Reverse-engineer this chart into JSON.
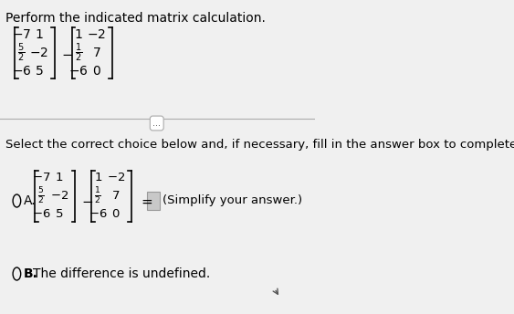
{
  "title": "Perform the indicated matrix calculation.",
  "select_text": "Select the correct choice below and, if necessary, fill in the answer box to complete your choice.",
  "bg_color": "#f0f0f0",
  "text_color": "#000000",
  "matrix1_rows": [
    [
      "-7",
      "1"
    ],
    [
      "\\frac{5}{2}",
      "-2"
    ],
    [
      "-6",
      "5"
    ]
  ],
  "matrix2_rows": [
    [
      "1",
      "-2"
    ],
    [
      "\\frac{1}{2}",
      "7"
    ],
    [
      "-6",
      "0"
    ]
  ],
  "choice_A": "A.",
  "choice_B": "B.",
  "simplify_text": "(Simplify your answer.)",
  "undefined_text": "The difference is undefined.",
  "equals_sign": "=",
  "minus_sign": "-",
  "dots_button": "...",
  "answer_box_color": "#c8c8c8"
}
